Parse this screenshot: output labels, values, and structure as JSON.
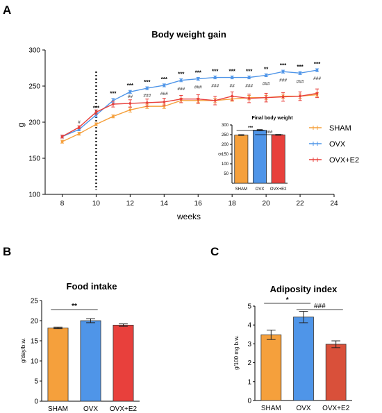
{
  "panels": {
    "a": "A",
    "b": "B",
    "c": "C"
  },
  "colors": {
    "sham": "#f5a03c",
    "ovx": "#4f95e8",
    "ovx_e2": "#e8403c",
    "adip_e2": "#d9503a"
  },
  "chart_data": [
    {
      "id": "body-weight-gain",
      "type": "line",
      "title": "Body weight gain",
      "xlabel": "weeks",
      "ylabel": "g",
      "xlim": [
        7,
        24
      ],
      "ylim": [
        100,
        300
      ],
      "xticks": [
        8,
        10,
        12,
        14,
        16,
        18,
        20,
        22,
        24
      ],
      "yticks": [
        100,
        150,
        200,
        250,
        300
      ],
      "vline_x": 10,
      "x": [
        8,
        9,
        10,
        11,
        12,
        13,
        14,
        15,
        16,
        17,
        18,
        19,
        20,
        21,
        22,
        23
      ],
      "series": [
        {
          "name": "SHAM",
          "color": "#f5a03c",
          "values": [
            173,
            184,
            197,
            208,
            217,
            222,
            222,
            230,
            230,
            230,
            232,
            234,
            234,
            236,
            236,
            238
          ],
          "err": [
            2,
            2,
            2,
            2,
            3,
            3,
            3,
            3,
            3,
            3,
            3,
            3,
            3,
            3,
            3,
            3
          ]
        },
        {
          "name": "OVX",
          "color": "#4f95e8",
          "values": [
            180,
            190,
            210,
            230,
            242,
            247,
            251,
            258,
            260,
            262,
            262,
            262,
            265,
            270,
            268,
            272
          ],
          "err": [
            2,
            2,
            3,
            3,
            2,
            2,
            2,
            2,
            2,
            2,
            2,
            2,
            2,
            2,
            2,
            2
          ]
        },
        {
          "name": "OVX+E2",
          "color": "#e8403c",
          "values": [
            180,
            193,
            214,
            225,
            226,
            227,
            228,
            232,
            232,
            230,
            236,
            233,
            234,
            235,
            236,
            240
          ],
          "err": [
            2,
            2,
            3,
            4,
            5,
            5,
            5,
            5,
            6,
            6,
            6,
            6,
            6,
            6,
            6,
            6
          ]
        }
      ],
      "annotations_ovx": [
        {
          "x": 10,
          "text": "***"
        },
        {
          "x": 11,
          "text": "***"
        },
        {
          "x": 12,
          "text": "***"
        },
        {
          "x": 13,
          "text": "***"
        },
        {
          "x": 14,
          "text": "***"
        },
        {
          "x": 15,
          "text": "***"
        },
        {
          "x": 16,
          "text": "***"
        },
        {
          "x": 17,
          "text": "***"
        },
        {
          "x": 18,
          "text": "***"
        },
        {
          "x": 19,
          "text": "***"
        },
        {
          "x": 20,
          "text": "**"
        },
        {
          "x": 21,
          "text": "***"
        },
        {
          "x": 22,
          "text": "***"
        },
        {
          "x": 23,
          "text": "***"
        }
      ],
      "annotations_e2": [
        {
          "x": 9,
          "text": "#"
        },
        {
          "x": 12,
          "text": "##"
        },
        {
          "x": 13,
          "text": "###"
        },
        {
          "x": 14,
          "text": "###"
        },
        {
          "x": 15,
          "text": "###"
        },
        {
          "x": 16,
          "text": "###"
        },
        {
          "x": 17,
          "text": "###"
        },
        {
          "x": 18,
          "text": "##"
        },
        {
          "x": 19,
          "text": "###"
        },
        {
          "x": 20,
          "text": "###"
        },
        {
          "x": 21,
          "text": "###"
        },
        {
          "x": 22,
          "text": "###"
        },
        {
          "x": 23,
          "text": "###"
        }
      ],
      "legend": [
        "SHAM",
        "OVX",
        "OVX+E2"
      ],
      "legend_placement": "right"
    },
    {
      "id": "final-body-weight",
      "type": "bar",
      "title": "Final body weight",
      "ylabel": "g",
      "categories": [
        "SHAM",
        "OVX",
        "OVX+E2"
      ],
      "values": [
        248,
        273,
        249
      ],
      "err": [
        2,
        3,
        2
      ],
      "ylim": [
        0,
        300
      ],
      "yticks": [
        50,
        100,
        150,
        200,
        250,
        300
      ],
      "sig": [
        {
          "from": 0,
          "to": 1,
          "text": "***"
        },
        {
          "from": 1,
          "to": 2,
          "text": "###"
        }
      ]
    },
    {
      "id": "food-intake",
      "type": "bar",
      "title": "Food intake",
      "ylabel": "g/day/b.w.",
      "categories": [
        "SHAM",
        "OVX",
        "OVX+E2"
      ],
      "values": [
        18.2,
        20.0,
        18.9
      ],
      "err": [
        0.2,
        0.5,
        0.3
      ],
      "ylim": [
        0,
        25
      ],
      "yticks": [
        0,
        5,
        10,
        15,
        20,
        25
      ],
      "sig": [
        {
          "from": 0,
          "to": 1,
          "text": "**"
        }
      ]
    },
    {
      "id": "adiposity-index",
      "type": "bar",
      "title": "Adiposity index",
      "ylabel": "g/100 mg b.w.",
      "categories": [
        "SHAM",
        "OVX",
        "OVX+E2"
      ],
      "values": [
        3.48,
        4.42,
        2.98
      ],
      "err": [
        0.25,
        0.3,
        0.18
      ],
      "ylim": [
        0,
        5
      ],
      "yticks": [
        0,
        1,
        2,
        3,
        4,
        5
      ],
      "sig": [
        {
          "from": 0,
          "to": 1,
          "text": "*"
        },
        {
          "from": 1,
          "to": 2,
          "text": "###"
        }
      ]
    }
  ]
}
